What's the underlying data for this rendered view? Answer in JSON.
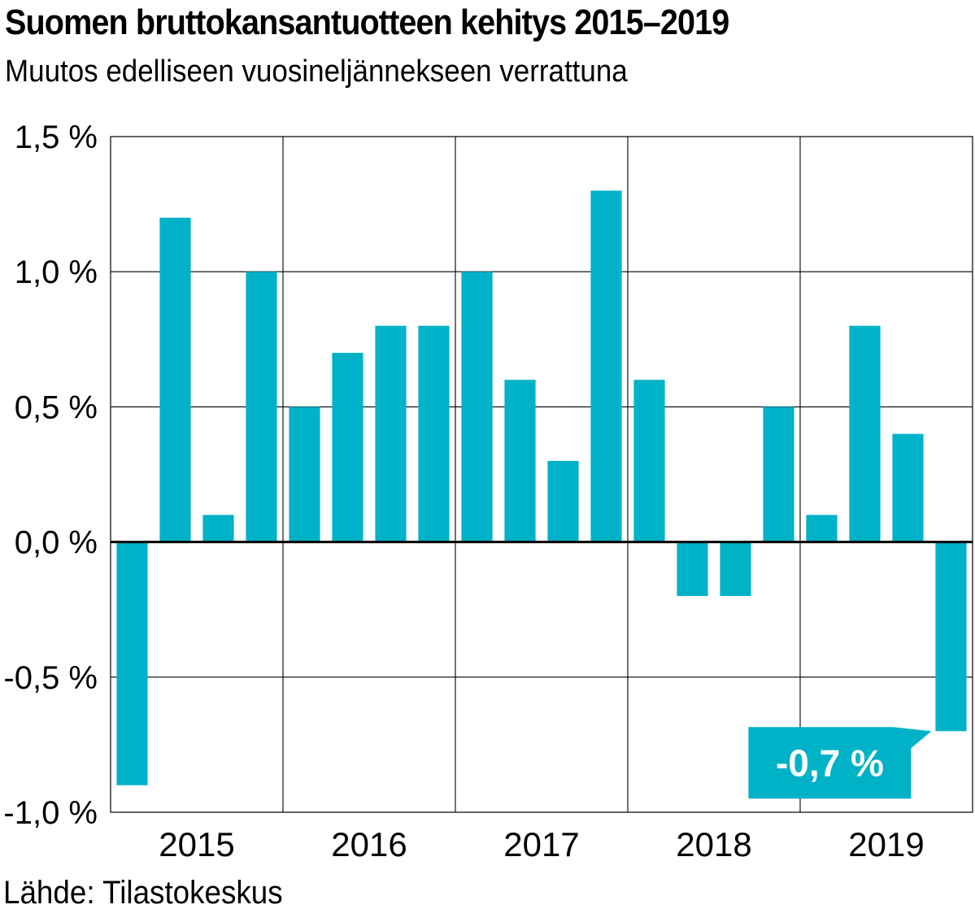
{
  "header": {
    "title": "Suomen bruttokansantuotteen kehitys 2015–2019",
    "subtitle": "Muutos edelliseen vuosineljännekseen verrattuna"
  },
  "footer": {
    "source": "Lähde: Tilastokeskus"
  },
  "colors": {
    "bar": "#00b2c8",
    "grid": "#000000",
    "zero_line": "#000000",
    "callout_bg": "#00b2c8",
    "callout_text": "#ffffff"
  },
  "chart_data": {
    "type": "bar",
    "title": "Suomen bruttokansantuotteen kehitys 2015–2019",
    "subtitle": "Muutos edelliseen vuosineljännekseen verrattuna",
    "xlabel": "",
    "ylabel": "",
    "ylim": [
      -1.0,
      1.5
    ],
    "grid": true,
    "year_groups": [
      {
        "label": "2015",
        "values": [
          -0.9,
          1.2,
          0.1,
          1.0
        ]
      },
      {
        "label": "2016",
        "values": [
          0.5,
          0.7,
          0.8,
          0.8
        ]
      },
      {
        "label": "2017",
        "values": [
          1.0,
          0.6,
          0.3,
          1.3
        ]
      },
      {
        "label": "2018",
        "values": [
          0.6,
          -0.2,
          -0.2,
          0.5
        ]
      },
      {
        "label": "2019",
        "values": [
          0.1,
          0.8,
          0.4,
          -0.7
        ]
      }
    ],
    "y_ticks": [
      {
        "value": 1.5,
        "label": "1,5 %"
      },
      {
        "value": 1.0,
        "label": "1,0 %"
      },
      {
        "value": 0.5,
        "label": "0,5 %"
      },
      {
        "value": 0.0,
        "label": "0,0 %"
      },
      {
        "value": -0.5,
        "label": "-0,5 %"
      },
      {
        "value": -1.0,
        "label": "-1,0 %"
      }
    ],
    "annotation": {
      "label": "-0,7 %",
      "year": "2019",
      "quarter_index": 3,
      "value": -0.7
    }
  }
}
